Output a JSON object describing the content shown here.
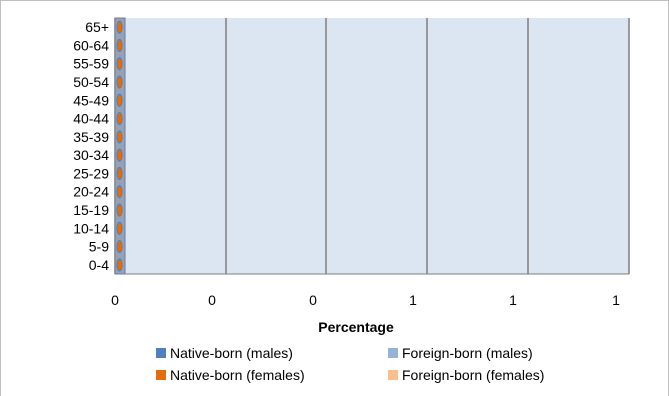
{
  "chart_data": {
    "type": "bar",
    "orientation": "horizontal",
    "stacked": true,
    "categories": [
      "0-4",
      "5-9",
      "10-14",
      "15-19",
      "20-24",
      "25-29",
      "30-34",
      "35-39",
      "40-44",
      "45-49",
      "50-54",
      "55-59",
      "60-64",
      "65+"
    ],
    "series": [
      {
        "name": "Native-born (males)",
        "color": "#4f81bd",
        "values": [
          0,
          0,
          0,
          0,
          0,
          0,
          0,
          0,
          0,
          0,
          0,
          0,
          0,
          0
        ]
      },
      {
        "name": "Foreign-born (males)",
        "color": "#95b3d7",
        "values": [
          0,
          0,
          0,
          0,
          0,
          0,
          0,
          0,
          0,
          0,
          0,
          0,
          0,
          0
        ]
      },
      {
        "name": "Native-born (females)",
        "color": "#e46c0a",
        "values": [
          0,
          0,
          0,
          0,
          0,
          0,
          0,
          0,
          0,
          0,
          0,
          0,
          0,
          0
        ]
      },
      {
        "name": "Foreign-born (females)",
        "color": "#fabf8f",
        "values": [
          0,
          0,
          0,
          0,
          0,
          0,
          0,
          0,
          0,
          0,
          0,
          0,
          0,
          0
        ]
      }
    ],
    "x_tick_labels": [
      "0",
      "0",
      "0",
      "1",
      "1",
      "1"
    ],
    "xlabel": "Percentage",
    "ylabel": "",
    "title": "",
    "grid": true,
    "legend_position": "bottom",
    "plot_background": "#dce6f2",
    "gridline_color": "#7f7f7f"
  }
}
